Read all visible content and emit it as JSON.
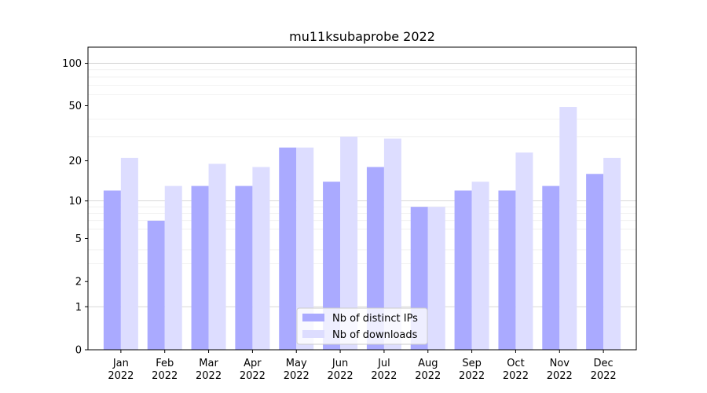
{
  "chart_data": {
    "type": "bar",
    "title": "mu11ksubaprobe 2022",
    "xlabel": "",
    "ylabel": "",
    "y_scale": "log1p",
    "ylim": [
      0,
      130
    ],
    "y_ticks": [
      0,
      1,
      2,
      5,
      10,
      20,
      50,
      100
    ],
    "grid": "y-major-and-minor",
    "legend_position": "bottom-center",
    "categories": [
      [
        "Jan",
        "2022"
      ],
      [
        "Feb",
        "2022"
      ],
      [
        "Mar",
        "2022"
      ],
      [
        "Apr",
        "2022"
      ],
      [
        "May",
        "2022"
      ],
      [
        "Jun",
        "2022"
      ],
      [
        "Jul",
        "2022"
      ],
      [
        "Aug",
        "2022"
      ],
      [
        "Sep",
        "2022"
      ],
      [
        "Oct",
        "2022"
      ],
      [
        "Nov",
        "2022"
      ],
      [
        "Dec",
        "2022"
      ]
    ],
    "series": [
      {
        "name": "Nb of distinct IPs",
        "color": "#aaaaff",
        "values": [
          12,
          7,
          13,
          13,
          25,
          14,
          18,
          9,
          12,
          12,
          13,
          16
        ]
      },
      {
        "name": "Nb of downloads",
        "color": "#ddddff",
        "values": [
          21,
          13,
          19,
          18,
          25,
          30,
          29,
          9,
          14,
          23,
          49,
          21
        ]
      }
    ]
  }
}
